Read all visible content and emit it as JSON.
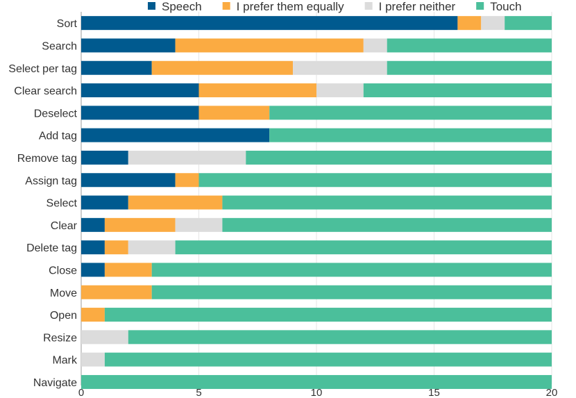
{
  "chart_data": {
    "type": "bar",
    "orientation": "horizontal",
    "stacked": true,
    "categories": [
      "Sort",
      "Search",
      "Select per tag",
      "Clear search",
      "Deselect",
      "Add tag",
      "Remove tag",
      "Assign tag",
      "Select",
      "Clear",
      "Delete tag",
      "Close",
      "Move",
      "Open",
      "Resize",
      "Mark",
      "Navigate"
    ],
    "series": [
      {
        "name": "Speech",
        "color": "#005a8f",
        "values": [
          16,
          4,
          3,
          5,
          5,
          8,
          2,
          4,
          2,
          1,
          1,
          1,
          0,
          0,
          0,
          0,
          0
        ]
      },
      {
        "name": "I prefer them equally",
        "color": "#fbab42",
        "values": [
          1,
          8,
          6,
          5,
          3,
          0,
          0,
          1,
          4,
          3,
          1,
          2,
          3,
          1,
          0,
          0,
          0
        ]
      },
      {
        "name": "I prefer neither",
        "color": "#dcdcdc",
        "values": [
          1,
          1,
          4,
          2,
          0,
          0,
          5,
          0,
          0,
          2,
          2,
          0,
          0,
          0,
          2,
          1,
          0
        ]
      },
      {
        "name": "Touch",
        "color": "#4bbf9b",
        "values": [
          2,
          7,
          7,
          8,
          12,
          12,
          13,
          15,
          14,
          14,
          16,
          17,
          17,
          19,
          18,
          19,
          20
        ]
      }
    ],
    "xlim": [
      0,
      20
    ],
    "xticks": [
      "0",
      "5",
      "10",
      "15",
      "20"
    ],
    "legend": "top",
    "grid": true
  }
}
